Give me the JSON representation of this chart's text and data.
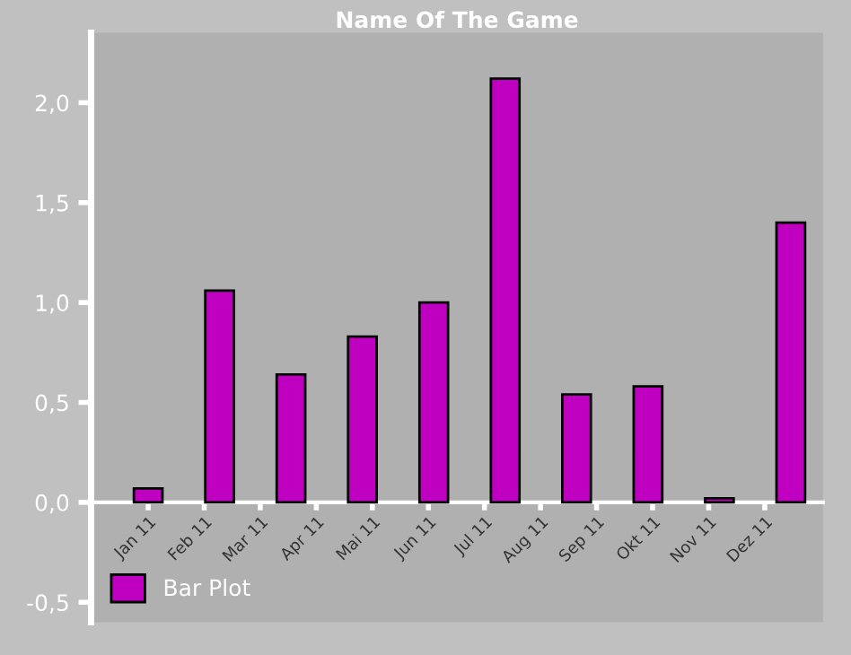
{
  "chart_data": {
    "type": "bar",
    "title": "Name Of The Game",
    "categories": [
      null,
      null,
      null,
      null,
      null,
      null,
      null,
      null,
      null,
      null
    ],
    "series": [
      {
        "name": "Bar Plot",
        "color": "#c000c0",
        "values": [
          0.07,
          1.06,
          0.64,
          0.83,
          1.0,
          2.12,
          0.54,
          0.58,
          0.02,
          1.4
        ]
      }
    ],
    "annotations": [
      "Jan 11",
      "Feb 11",
      "Mar 11",
      "Apr 11",
      "Mai 11",
      "Jun 11",
      "Jul 11",
      "Aug 11",
      "Sep 11",
      "Okt 11",
      "Nov 11",
      "Dez 11"
    ],
    "ylim": [
      -0.6,
      2.35
    ],
    "yticks": [
      {
        "value": -0.5,
        "label": "-0,5"
      },
      {
        "value": 0.0,
        "label": "0,0"
      },
      {
        "value": 0.5,
        "label": "0,5"
      },
      {
        "value": 1.0,
        "label": "1,0"
      },
      {
        "value": 1.5,
        "label": "1,5"
      },
      {
        "value": 2.0,
        "label": "2,0"
      }
    ],
    "legend": "bottom left"
  }
}
